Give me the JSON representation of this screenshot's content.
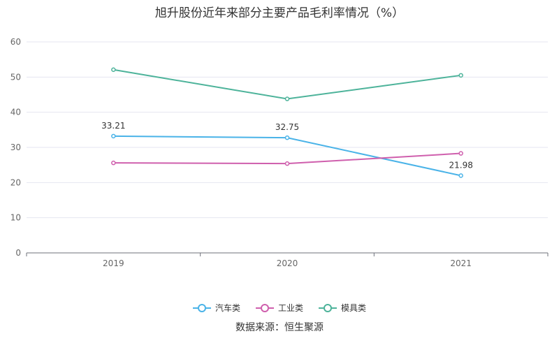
{
  "chart_data": {
    "type": "line",
    "title": "旭升股份近年来部分主要产品毛利率情况（%）",
    "categories": [
      "2019",
      "2020",
      "2021"
    ],
    "ylim": [
      0,
      60
    ],
    "yticks": [
      0,
      10,
      20,
      30,
      40,
      50,
      60
    ],
    "grid": true,
    "legend_position": "bottom",
    "series": [
      {
        "name": "汽车类",
        "color": "#4ab3e8",
        "values": [
          33.21,
          32.75,
          21.98
        ],
        "labels": [
          "33.21",
          "32.75",
          "21.98"
        ]
      },
      {
        "name": "工业类",
        "color": "#cf5fad",
        "values": [
          25.6,
          25.4,
          28.3
        ],
        "labels": []
      },
      {
        "name": "模具类",
        "color": "#4db39a",
        "values": [
          52.1,
          43.8,
          50.5
        ],
        "labels": []
      }
    ]
  },
  "source_text": "数据来源：恒生聚源"
}
